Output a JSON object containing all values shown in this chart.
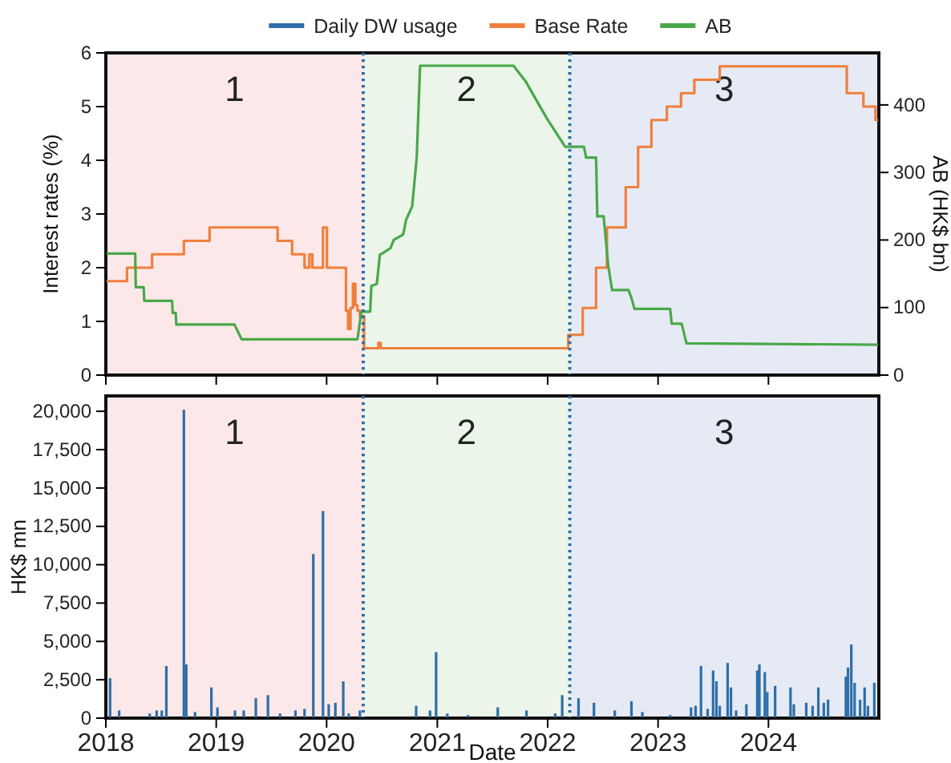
{
  "chart_data": [
    {
      "type": "line",
      "ylabel": "Interest rates (%)",
      "y2label": "AB (HK$ bn)",
      "xlim": [
        "2018-01-01",
        "2024-12-31"
      ],
      "xticks": [
        "2018",
        "2019",
        "2020",
        "2021",
        "2022",
        "2023",
        "2024"
      ],
      "tick_labels": "y",
      "ylim": [
        0,
        6
      ],
      "yticks": [
        0,
        1,
        2,
        3,
        4,
        5,
        6
      ],
      "y2lim": [
        0,
        477
      ],
      "y2ticks": [
        0,
        100,
        200,
        300,
        400
      ],
      "legend": "top",
      "grid": false,
      "bands": [
        {
          "axis": "x",
          "from": "2018-01-01",
          "to": "2020-05-01",
          "label": "1",
          "color": "#fce8e8"
        },
        {
          "axis": "x",
          "from": "2020-05-01",
          "to": "2022-03-15",
          "label": "2",
          "color": "#ebf5ea"
        },
        {
          "axis": "x",
          "from": "2022-03-15",
          "to": "2024-12-31",
          "label": "3",
          "color": "#e6eaf4"
        }
      ],
      "ref_lines": [
        {
          "axis": "x",
          "value": "2020-05-01",
          "color": "#2e6fa8",
          "line_style": "dotted"
        },
        {
          "axis": "x",
          "value": "2022-03-15",
          "color": "#2e6fa8",
          "line_style": "dotted"
        }
      ],
      "series": [
        {
          "name": "Base Rate",
          "type": "step",
          "color": "#f07f3c",
          "x": [
            "2018-01-01",
            "2018-03-12",
            "2018-06-03",
            "2018-09-16",
            "2018-12-10",
            "2019-07-23",
            "2019-09-09",
            "2019-10-20",
            "2019-11-05",
            "2019-11-15",
            "2019-12-20",
            "2020-01-02",
            "2020-03-05",
            "2020-03-12",
            "2020-03-20",
            "2020-03-28",
            "2020-04-05",
            "2020-04-12",
            "2020-04-20",
            "2020-05-04",
            "2020-06-20",
            "2020-06-28",
            "2022-03-10",
            "2022-04-27",
            "2022-06-10",
            "2022-07-16",
            "2022-09-16",
            "2022-10-27",
            "2022-12-10",
            "2023-01-30",
            "2023-03-18",
            "2023-05-01",
            "2023-07-24",
            "2024-09-16",
            "2024-11-10",
            "2024-12-20",
            "2024-12-31"
          ],
          "values": [
            1.75,
            2.0,
            2.25,
            2.5,
            2.75,
            2.5,
            2.25,
            2.0,
            2.25,
            2.0,
            2.75,
            2.0,
            1.2,
            0.86,
            1.25,
            1.7,
            1.3,
            1.2,
            1.1,
            0.5,
            0.6,
            0.5,
            0.75,
            1.25,
            2.0,
            2.75,
            3.5,
            4.25,
            4.75,
            5.0,
            5.25,
            5.5,
            5.75,
            5.25,
            5.0,
            4.75,
            4.75
          ]
        },
        {
          "name": "AB",
          "type": "line",
          "axis": "y2",
          "color": "#4aa84a",
          "x": [
            "2018-01-01",
            "2018-04-08",
            "2018-04-10",
            "2018-05-06",
            "2018-05-08",
            "2018-08-08",
            "2018-08-10",
            "2018-08-20",
            "2018-08-22",
            "2019-03-02",
            "2019-03-26",
            "2020-04-12",
            "2020-04-25",
            "2020-05-24",
            "2020-05-28",
            "2020-06-15",
            "2020-06-25",
            "2020-07-10",
            "2020-07-30",
            "2020-08-10",
            "2020-09-10",
            "2020-09-20",
            "2020-10-10",
            "2020-10-25",
            "2020-11-05",
            "2021-09-10",
            "2021-10-20",
            "2021-12-10",
            "2022-01-01",
            "2022-02-28",
            "2022-05-01",
            "2022-05-08",
            "2022-06-10",
            "2022-06-14",
            "2022-07-05",
            "2022-07-20",
            "2022-08-02",
            "2022-09-25",
            "2022-10-05",
            "2022-10-15",
            "2023-02-10",
            "2023-02-15",
            "2023-03-20",
            "2023-04-05",
            "2024-12-31"
          ],
          "values": [
            180,
            180,
            130,
            130,
            110,
            110,
            92,
            92,
            75,
            75,
            53,
            53,
            94,
            94,
            132,
            135,
            178,
            182,
            188,
            200,
            208,
            230,
            250,
            322,
            458,
            458,
            435,
            395,
            378,
            338,
            338,
            322,
            322,
            235,
            235,
            163,
            126,
            126,
            114,
            98,
            98,
            76,
            76,
            47,
            45
          ]
        }
      ]
    },
    {
      "type": "bar",
      "xlabel": "Date",
      "ylabel": "HK$ mn",
      "xlim": [
        "2018-01-01",
        "2024-12-31"
      ],
      "xticks": [
        "2018",
        "2019",
        "2020",
        "2021",
        "2022",
        "2023",
        "2024"
      ],
      "ylim": [
        0,
        21000
      ],
      "yticks": [
        0,
        {
          "value": 2500,
          "label": "2,500"
        },
        {
          "value": 5000,
          "label": "5,000"
        },
        {
          "value": 7500,
          "label": "7,500"
        },
        {
          "value": 10000,
          "label": "10,000"
        },
        {
          "value": 12500,
          "label": "12,500"
        },
        {
          "value": 15000,
          "label": "15,000"
        },
        {
          "value": 17500,
          "label": "17,500"
        },
        {
          "value": 20000,
          "label": "20,000"
        }
      ],
      "legend": "top",
      "grid": false,
      "bands": [
        {
          "axis": "x",
          "from": "2018-01-01",
          "to": "2020-05-01",
          "label": "1",
          "color": "#fce8e8"
        },
        {
          "axis": "x",
          "from": "2020-05-01",
          "to": "2022-03-15",
          "label": "2",
          "color": "#ebf5ea"
        },
        {
          "axis": "x",
          "from": "2022-03-15",
          "to": "2024-12-31",
          "label": "3",
          "color": "#e6eaf4"
        }
      ],
      "ref_lines": [
        {
          "axis": "x",
          "value": "2020-05-01",
          "color": "#2e6fa8",
          "line_style": "dotted"
        },
        {
          "axis": "x",
          "value": "2022-03-15",
          "color": "#2e6fa8",
          "line_style": "dotted"
        }
      ],
      "series": [
        {
          "name": "Daily DW usage",
          "color": "#2e6fa8",
          "x": [
            "2018-01-15",
            "2018-02-14",
            "2018-05-26",
            "2018-06-18",
            "2018-07-05",
            "2018-07-20",
            "2018-09-16",
            "2018-09-24",
            "2018-10-23",
            "2018-12-16",
            "2019-01-05",
            "2019-03-04",
            "2019-04-02",
            "2019-05-12",
            "2019-06-21",
            "2019-07-31",
            "2019-09-20",
            "2019-10-20",
            "2019-11-18",
            "2019-12-20",
            "2020-01-08",
            "2020-01-30",
            "2020-02-25",
            "2020-03-14",
            "2020-04-20",
            "2020-10-23",
            "2020-12-08",
            "2020-12-28",
            "2021-02-03",
            "2021-04-13",
            "2021-07-20",
            "2021-10-23",
            "2022-01-26",
            "2022-02-18",
            "2022-04-13",
            "2022-06-03",
            "2022-08-11",
            "2022-10-05",
            "2022-11-10",
            "2023-02-10",
            "2023-04-20",
            "2023-05-05",
            "2023-05-23",
            "2023-06-14",
            "2023-07-02",
            "2023-07-13",
            "2023-07-24",
            "2023-08-19",
            "2023-08-30",
            "2023-09-16",
            "2023-10-20",
            "2023-11-25",
            "2023-12-02",
            "2023-12-20",
            "2023-12-28",
            "2024-01-23",
            "2024-03-14",
            "2024-03-25",
            "2024-05-05",
            "2024-05-26",
            "2024-06-14",
            "2024-07-02",
            "2024-07-16",
            "2024-09-13",
            "2024-09-20",
            "2024-10-01",
            "2024-10-12",
            "2024-10-30",
            "2024-11-14",
            "2024-11-25",
            "2024-12-16"
          ],
          "values": [
            2600,
            500,
            300,
            500,
            500,
            3400,
            20100,
            3500,
            400,
            2000,
            700,
            500,
            500,
            1300,
            1500,
            300,
            500,
            600,
            10700,
            13500,
            900,
            1000,
            2400,
            300,
            500,
            800,
            500,
            4300,
            300,
            200,
            700,
            500,
            300,
            1500,
            1300,
            1000,
            500,
            1100,
            400,
            200,
            700,
            800,
            3400,
            600,
            3100,
            2400,
            800,
            3600,
            2000,
            500,
            900,
            3100,
            3500,
            3000,
            1700,
            2100,
            2000,
            900,
            1000,
            800,
            2000,
            1000,
            1200,
            2700,
            3300,
            4800,
            2300,
            1200,
            2000,
            800,
            2300
          ]
        }
      ]
    }
  ]
}
